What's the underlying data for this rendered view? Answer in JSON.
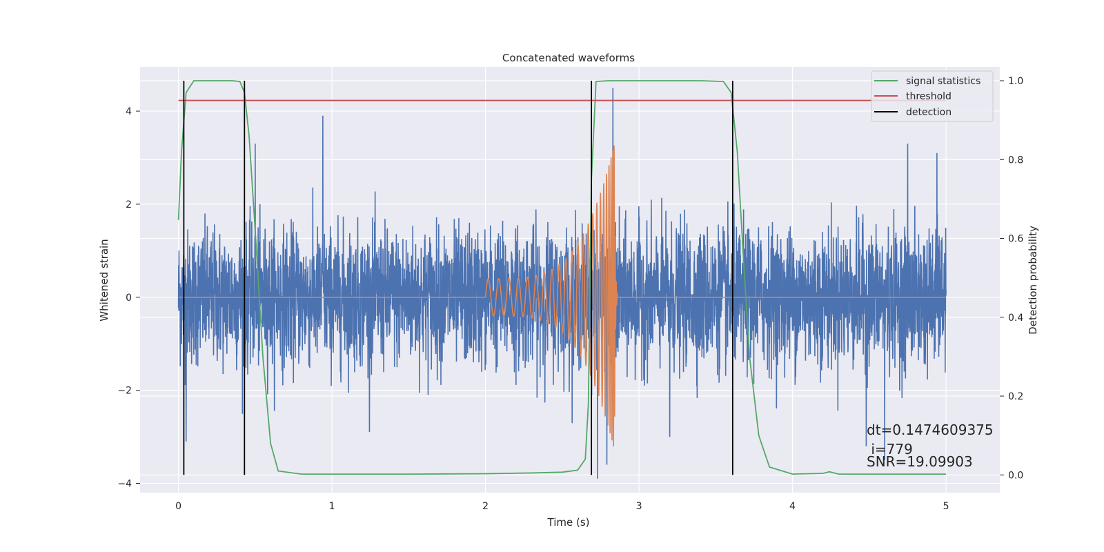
{
  "chart_data": {
    "type": "line",
    "title": "Concatenated waveforms",
    "xlabel": "Time (s)",
    "ylabel": "Whitened strain",
    "y2label": "Detection probability",
    "xlim": [
      -0.25,
      5.35
    ],
    "ylim": [
      -4.2,
      4.95
    ],
    "y2lim": [
      -0.045,
      1.035
    ],
    "x_ticks": [
      0,
      1,
      2,
      3,
      4,
      5
    ],
    "y_ticks": [
      -4,
      -2,
      0,
      2,
      4
    ],
    "y2_ticks": [
      0.0,
      0.2,
      0.4,
      0.6,
      0.8,
      1.0
    ],
    "grid": true,
    "legend": "top-right",
    "colors": {
      "strain": "#4c72b0",
      "template": "#dd8452",
      "signal_statistics": "#55a868",
      "threshold": "#c44e52",
      "detection": "#000000",
      "background": "#eaeaf2",
      "grid": "#ffffff"
    },
    "series": [
      {
        "name": "signal statistics",
        "axis": "right",
        "x": [
          0,
          0.02,
          0.05,
          0.1,
          0.2,
          0.35,
          0.4,
          0.43,
          0.46,
          0.5,
          0.55,
          0.6,
          0.65,
          0.8,
          1.5,
          2.0,
          2.3,
          2.5,
          2.6,
          2.65,
          2.67,
          2.69,
          2.72,
          2.8,
          3.0,
          3.4,
          3.55,
          3.6,
          3.64,
          3.68,
          3.72,
          3.78,
          3.85,
          4.0,
          4.2,
          4.24,
          4.3,
          4.6,
          5.0
        ],
        "values": [
          0.647,
          0.82,
          0.97,
          1.0,
          1.0,
          1.0,
          0.998,
          0.97,
          0.86,
          0.62,
          0.3,
          0.08,
          0.01,
          0.002,
          0.002,
          0.003,
          0.005,
          0.007,
          0.012,
          0.04,
          0.18,
          0.75,
          0.998,
          1.0,
          1.0,
          1.0,
          0.998,
          0.97,
          0.82,
          0.55,
          0.3,
          0.1,
          0.02,
          0.002,
          0.004,
          0.008,
          0.002,
          0.002,
          0.002
        ]
      },
      {
        "name": "threshold",
        "axis": "right",
        "x": [
          0,
          5
        ],
        "values": [
          0.95,
          0.95
        ]
      },
      {
        "name": "detection",
        "axis": "right",
        "x_lines": [
          0.035,
          0.43,
          2.69,
          3.61
        ],
        "range": [
          0,
          1
        ]
      }
    ],
    "strain_data": {
      "x_range": [
        0,
        5
      ],
      "noise_sigma": 0.72,
      "outliers": [
        [
          0.94,
          3.9
        ],
        [
          0.5,
          3.3
        ],
        [
          2.83,
          4.5
        ],
        [
          2.73,
          -3.9
        ],
        [
          2.79,
          -3.6
        ],
        [
          4.48,
          -3.2
        ],
        [
          4.6,
          -3.5
        ],
        [
          3.2,
          -3.0
        ],
        [
          0.05,
          -3.1
        ],
        [
          4.75,
          3.3
        ],
        [
          4.94,
          3.1
        ]
      ]
    },
    "template_data": {
      "start": 2.0,
      "merger": 2.84,
      "end": 2.86,
      "amp_start": 0.4,
      "amp_peak": 3.3,
      "freq_start": 14
    }
  },
  "annotations": {
    "line1": "dt=0.1474609375",
    "line2": " i=779",
    "line3": "SNR=19.09903"
  }
}
